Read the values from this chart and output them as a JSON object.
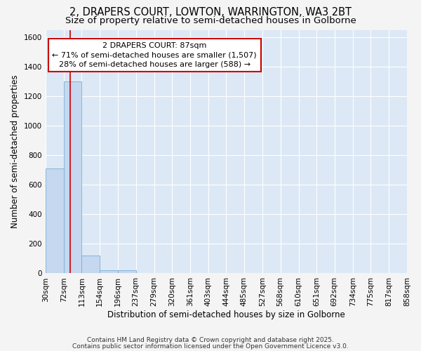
{
  "title1": "2, DRAPERS COURT, LOWTON, WARRINGTON, WA3 2BT",
  "title2": "Size of property relative to semi-detached houses in Golborne",
  "xlabel": "Distribution of semi-detached houses by size in Golborne",
  "ylabel": "Number of semi-detached properties",
  "bin_edges": [
    30,
    72,
    113,
    154,
    196,
    237,
    279,
    320,
    361,
    403,
    444,
    485,
    527,
    568,
    610,
    651,
    692,
    734,
    775,
    817,
    858
  ],
  "bar_heights": [
    710,
    1300,
    120,
    20,
    20,
    0,
    0,
    0,
    0,
    0,
    0,
    0,
    0,
    0,
    0,
    0,
    0,
    0,
    0,
    0
  ],
  "bar_color": "#c5d8ef",
  "bar_edgecolor": "#7aadd4",
  "property_size": 87,
  "red_line_color": "#cc0000",
  "annotation_line1": "2 DRAPERS COURT: 87sqm",
  "annotation_line2": "← 71% of semi-detached houses are smaller (1,507)",
  "annotation_line3": "28% of semi-detached houses are larger (588) →",
  "annotation_box_color": "#ffffff",
  "annotation_box_edgecolor": "#cc0000",
  "ylim": [
    0,
    1650
  ],
  "yticks": [
    0,
    200,
    400,
    600,
    800,
    1000,
    1200,
    1400,
    1600
  ],
  "background_color": "#dce8f5",
  "fig_background": "#f4f4f4",
  "footer1": "Contains HM Land Registry data © Crown copyright and database right 2025.",
  "footer2": "Contains public sector information licensed under the Open Government Licence v3.0.",
  "title1_fontsize": 10.5,
  "title2_fontsize": 9.5,
  "tick_label_fontsize": 7.5,
  "axis_label_fontsize": 8.5,
  "annotation_fontsize": 8,
  "footer_fontsize": 6.5
}
